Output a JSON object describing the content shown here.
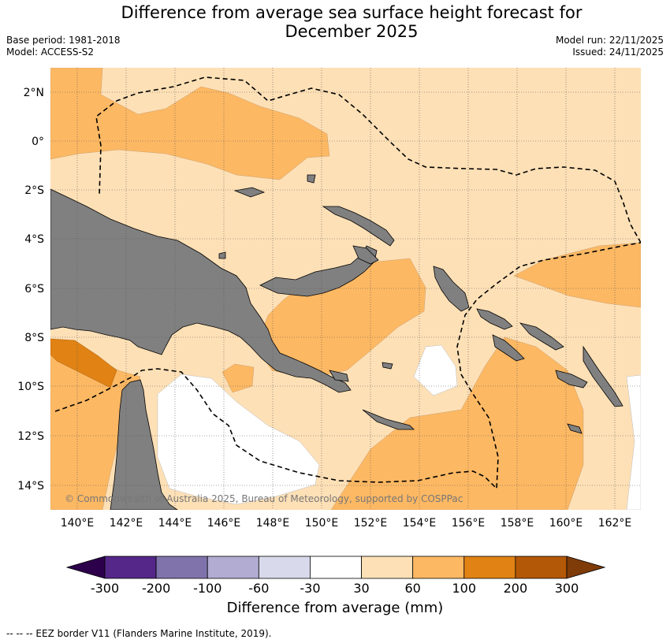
{
  "title": [
    "Difference from average sea surface height forecast for",
    "December 2025"
  ],
  "meta_left": [
    "Base period: 1981-2018",
    "Model: ACCESS-S2"
  ],
  "meta_right": [
    "Model run: 22/11/2025",
    "Issued: 24/11/2025"
  ],
  "map": {
    "lat_labels": [
      "2°N",
      "0°",
      "2°S",
      "4°S",
      "6°S",
      "8°S",
      "10°S",
      "12°S",
      "14°S"
    ],
    "lon_labels": [
      "140°E",
      "142°E",
      "144°E",
      "146°E",
      "148°E",
      "150°E",
      "152°E",
      "154°E",
      "156°E",
      "158°E",
      "160°E",
      "162°E"
    ],
    "copyright": "© Commonwealth of Australia 2025, Bureau of Meteorology, supported by COSPPac",
    "land_color": "#808080",
    "grid": "dotted"
  },
  "colorbar": {
    "title": "Difference from average (mm)",
    "ticks": [
      "-300",
      "-200",
      "-100",
      "-60",
      "-30",
      "30",
      "60",
      "100",
      "200",
      "300"
    ],
    "colors": [
      "#2d004b",
      "#542788",
      "#8073ac",
      "#b2abd2",
      "#d8daeb",
      "#ffffff",
      "#fee0b6",
      "#fdb863",
      "#e08214",
      "#b35806",
      "#7f3b08"
    ]
  },
  "footer": "--  --  -- EEZ border V11 (Flanders Marine Institute, 2019)."
}
